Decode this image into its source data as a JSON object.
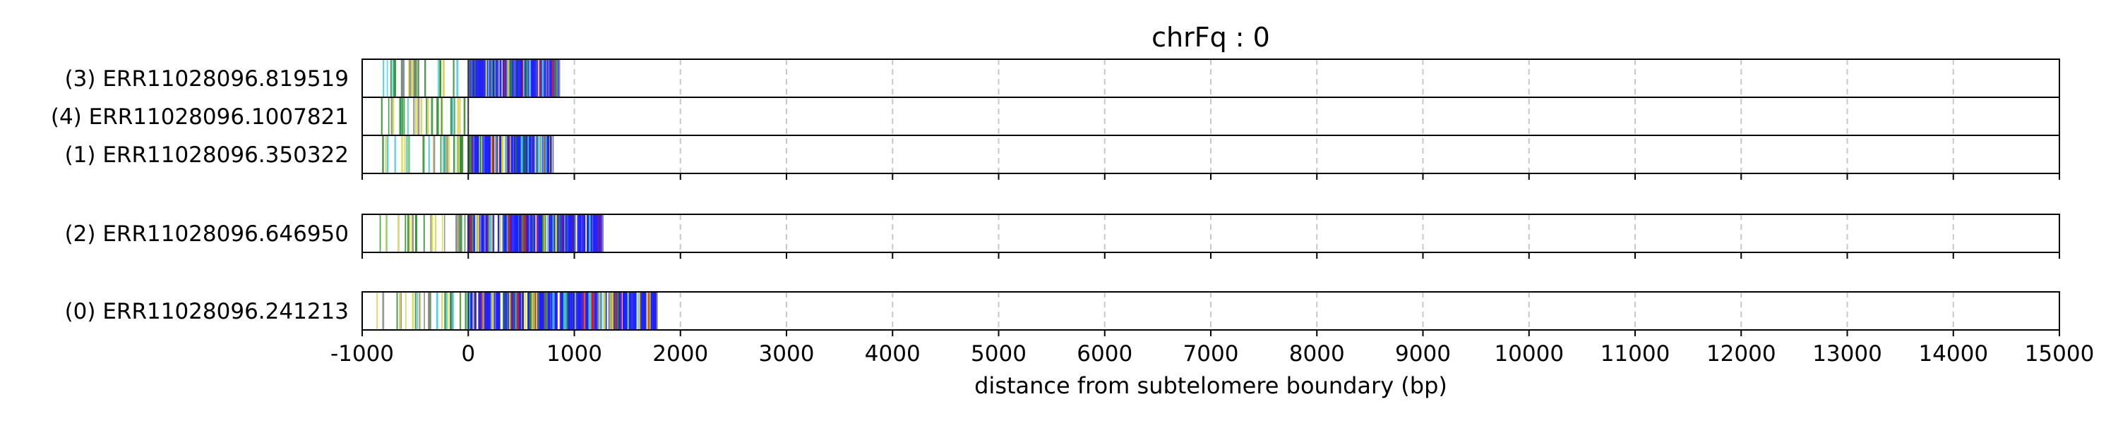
{
  "chart_data": {
    "type": "read-track",
    "title": "chrFq : 0",
    "xlabel": "distance from subtelomere boundary (bp)",
    "ylabel": "",
    "xlim": [
      -1000,
      15000
    ],
    "x_ticks": [
      -1000,
      0,
      1000,
      2000,
      3000,
      4000,
      5000,
      6000,
      7000,
      8000,
      9000,
      10000,
      11000,
      12000,
      13000,
      14000,
      15000
    ],
    "x_tick_labels": [
      "-1000",
      "0",
      "1000",
      "2000",
      "3000",
      "4000",
      "5000",
      "6000",
      "7000",
      "8000",
      "9000",
      "10000",
      "11000",
      "12000",
      "13000",
      "14000",
      "15000"
    ],
    "grid": "vertical-dashed",
    "groups": [
      {
        "reads": [
          {
            "label": "(3) ERR11028096.819519",
            "start": -1000,
            "end": 860
          },
          {
            "label": "(4) ERR11028096.1007821",
            "start": -1000,
            "end": 0
          },
          {
            "label": "(1) ERR11028096.350322",
            "start": -1000,
            "end": 800
          }
        ]
      },
      {
        "reads": [
          {
            "label": "(2) ERR11028096.646950",
            "start": -1000,
            "end": 1270
          }
        ]
      },
      {
        "reads": [
          {
            "label": "(0) ERR11028096.241213",
            "start": -1000,
            "end": 1780
          }
        ]
      }
    ],
    "colors": {
      "blue": "#1f1fff",
      "green": "#2e8b2e",
      "yellow": "#d8d84a",
      "red": "#d02020",
      "cyan": "#40c8d8",
      "gray": "#888888",
      "grid": "#c8c8c8"
    }
  }
}
